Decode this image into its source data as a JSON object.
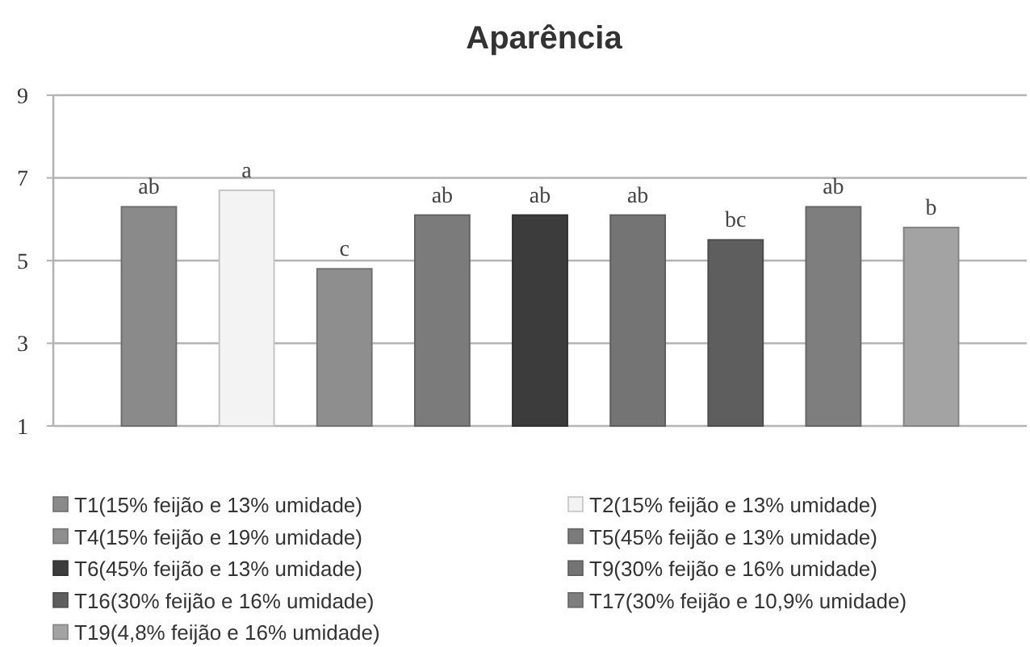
{
  "chart_data": {
    "type": "bar",
    "title": "Aparência",
    "categories": [
      null
    ],
    "ylim": [
      1,
      9
    ],
    "yticks": [
      1,
      3,
      5,
      7,
      9
    ],
    "grid": "y",
    "legend": "bottom",
    "series": [
      {
        "name": "T1(15% feijão e 13% umidade)",
        "color": "#8a8a8a",
        "values": [
          6.3
        ],
        "value_labels": [
          "ab"
        ]
      },
      {
        "name": "T2(15% feijão e 13% umidade)",
        "color": "#f3f3f3",
        "values": [
          6.7
        ],
        "value_labels": [
          "a"
        ]
      },
      {
        "name": "T4(15% feijão e 19% umidade)",
        "color": "#8e8e8e",
        "values": [
          4.8
        ],
        "value_labels": [
          "c"
        ]
      },
      {
        "name": "T5(45% feijão e 13% umidade)",
        "color": "#7b7b7b",
        "values": [
          6.1
        ],
        "value_labels": [
          "ab"
        ]
      },
      {
        "name": "T6(45% feijão e 13% umidade)",
        "color": "#3c3c3c",
        "values": [
          6.1
        ],
        "value_labels": [
          "ab"
        ]
      },
      {
        "name": "T9(30% feijão e 16% umidade)",
        "color": "#747474",
        "values": [
          6.1
        ],
        "value_labels": [
          "ab"
        ]
      },
      {
        "name": "T16(30% feijão e 16% umidade)",
        "color": "#5e5e5e",
        "values": [
          5.5
        ],
        "value_labels": [
          "bc"
        ]
      },
      {
        "name": "T17(30% feijão e 10,9% umidade)",
        "color": "#7e7e7e",
        "values": [
          6.3
        ],
        "value_labels": [
          "ab"
        ]
      },
      {
        "name": "T19(4,8% feijão e 16% umidade)",
        "color": "#a3a3a3",
        "values": [
          5.8
        ],
        "value_labels": [
          "b"
        ]
      }
    ]
  }
}
